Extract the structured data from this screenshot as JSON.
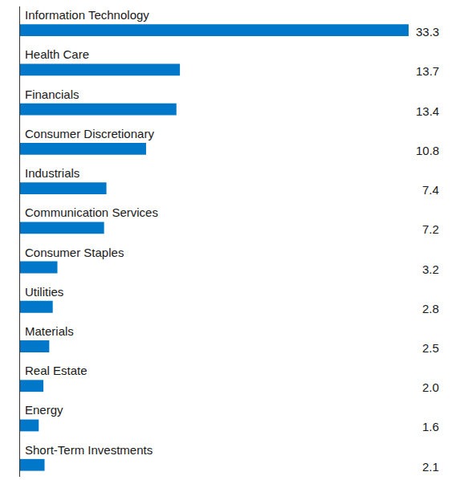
{
  "chart_data": {
    "type": "bar",
    "orientation": "horizontal",
    "categories": [
      "Information Technology",
      "Health Care",
      "Financials",
      "Consumer Discretionary",
      "Industrials",
      "Communication Services",
      "Consumer Staples",
      "Utilities",
      "Materials",
      "Real Estate",
      "Energy",
      "Short-Term Investments"
    ],
    "values": [
      33.3,
      13.7,
      13.4,
      10.8,
      7.4,
      7.2,
      3.2,
      2.8,
      2.5,
      2.0,
      1.6,
      2.1
    ],
    "value_labels": [
      "33.3",
      "13.7",
      "13.4",
      "10.8",
      "7.4",
      "7.2",
      "3.2",
      "2.8",
      "2.5",
      "2.0",
      "1.6",
      "2.1"
    ],
    "color": "#0077c8",
    "xlim": [
      0,
      33.3
    ],
    "data_labels": true,
    "tick_labels": false,
    "grid": false
  }
}
